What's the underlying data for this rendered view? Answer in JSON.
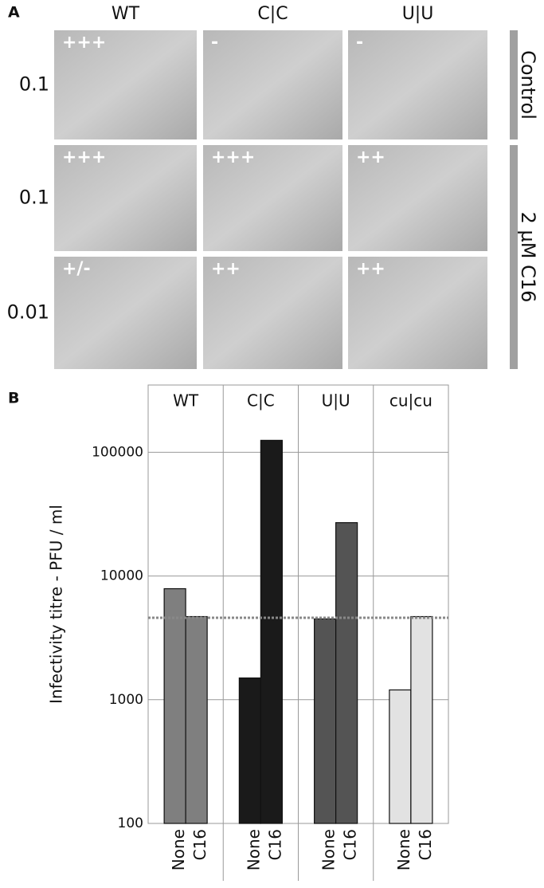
{
  "panel_a": {
    "label": "A",
    "columns": [
      "WT",
      "C|C",
      "U|U"
    ],
    "rows": [
      "0.1",
      "0.1",
      "0.01"
    ],
    "groups": [
      "Control",
      "2 µM C16"
    ],
    "scores": [
      [
        "+++",
        "-",
        "-"
      ],
      [
        "+++",
        "+++",
        "++"
      ],
      [
        "+/-",
        "++",
        "++"
      ]
    ]
  },
  "chart_data": {
    "type": "bar",
    "label": "B",
    "y_label": "Infectivity titre - PFU / ml",
    "categories": [
      "None",
      "C16"
    ],
    "series": [
      {
        "name": "WT",
        "color": "#7f7f7f",
        "values": [
          7900,
          4700
        ]
      },
      {
        "name": "C|C",
        "color": "#1a1a1a",
        "values": [
          1500,
          125000
        ]
      },
      {
        "name": "U|U",
        "color": "#545454",
        "values": [
          4500,
          27000
        ]
      },
      {
        "name": "cu|cu",
        "color": "#e2e2e2",
        "values": [
          1200,
          4700
        ]
      }
    ],
    "reference_line": 4600,
    "log_scale": true,
    "ylim": [
      100,
      350000
    ],
    "yticks": [
      100,
      1000,
      10000,
      100000
    ],
    "grid": true
  }
}
